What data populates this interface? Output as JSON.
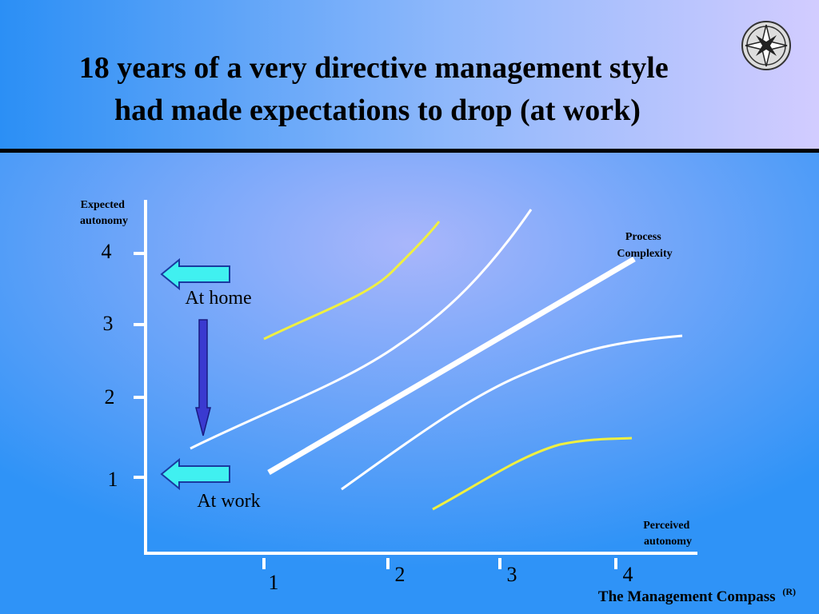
{
  "title": [
    "18 years of a very directive management style",
    "had made expectations to drop (at work)"
  ],
  "y_axis": {
    "label": [
      "Expected",
      "autonomy"
    ],
    "ticks": [
      4,
      3,
      2,
      1
    ]
  },
  "x_axis": {
    "label": [
      "Perceived",
      "autonomy"
    ],
    "ticks": [
      1,
      2,
      3,
      4
    ]
  },
  "annotations": {
    "process_complexity": [
      "Process",
      "Complexity"
    ],
    "at_home": "At home",
    "at_work": "At work"
  },
  "footer": {
    "text": "The Management Compass",
    "superscript": "(R)"
  }
}
